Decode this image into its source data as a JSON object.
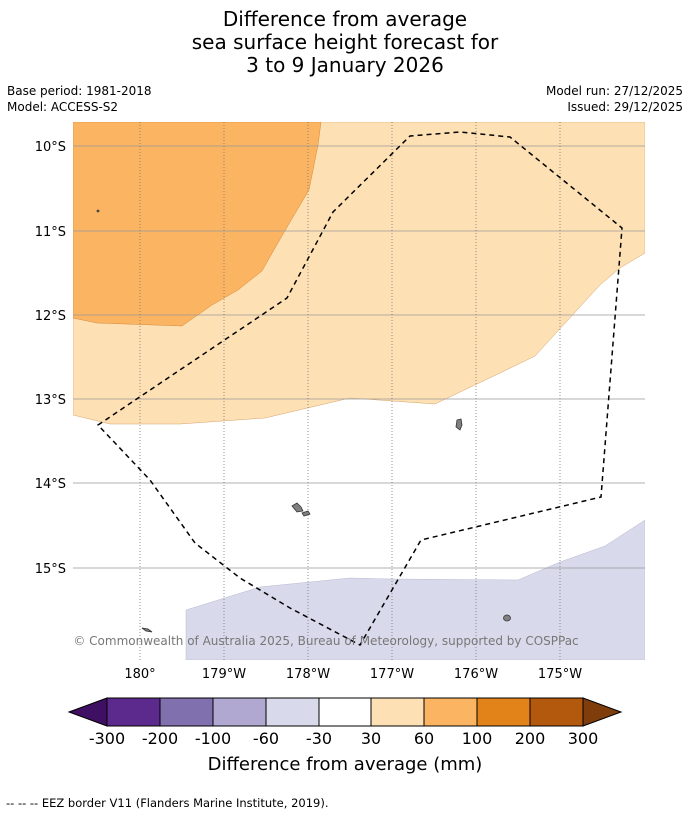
{
  "title": {
    "line1": "Difference from average",
    "line2": "sea surface height forecast for",
    "line3": "3 to 9 January 2026"
  },
  "meta": {
    "base_period": "Base period: 1981-2018",
    "model": "Model: ACCESS-S2",
    "model_run": "Model run: 27/12/2025",
    "issued": "Issued: 29/12/2025"
  },
  "map": {
    "lat_labels": [
      "10°S",
      "11°S",
      "12°S",
      "13°S",
      "14°S",
      "15°S"
    ],
    "lon_labels": [
      "180°",
      "179°W",
      "178°W",
      "177°W",
      "176°W",
      "175°W"
    ],
    "copyright": "© Commonwealth of Australia 2025, Bureau of Meteorology, supported by COSPPac"
  },
  "colorbar": {
    "tick_labels": [
      "-300",
      "-200",
      "-100",
      "-60",
      "-30",
      "30",
      "60",
      "100",
      "200",
      "300"
    ],
    "colors": [
      "#3f0f63",
      "#5c2a8c",
      "#8070ad",
      "#b0a8d0",
      "#d8d9ea",
      "#ffffff",
      "#fde0b4",
      "#fbb462",
      "#e2831a",
      "#b2590d",
      "#7f3d0b"
    ],
    "label": "Difference from average (mm)"
  },
  "footnote": "--  --  -- EEZ border V11 (Flanders Marine Institute, 2019)."
}
